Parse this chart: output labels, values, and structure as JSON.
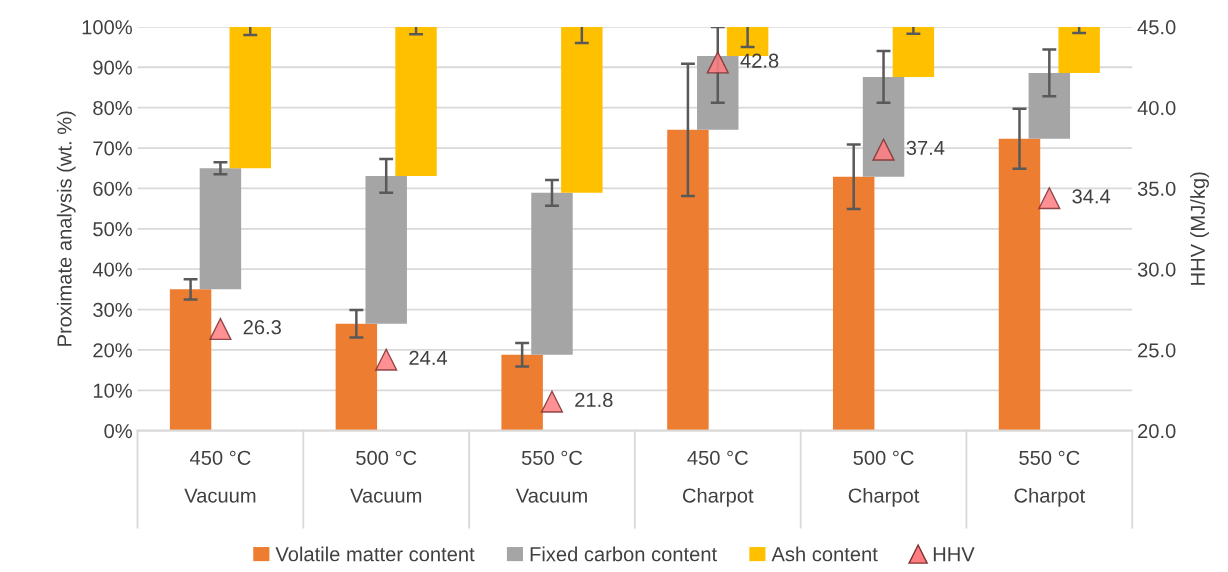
{
  "chart_data": {
    "type": "bar",
    "stacked": true,
    "categories": [
      "450 °C\nVacuum",
      "500 °C\nVacuum",
      "550 °C\nVacuum",
      "450 °C\nCharpot",
      "500 °C\nCharpot",
      "550 °C\nCharpot"
    ],
    "series": [
      {
        "name": "Volatile matter content",
        "color": "#ed7d31",
        "values": [
          35.0,
          26.5,
          18.8,
          74.5,
          62.9,
          72.3
        ],
        "errors": [
          2.5,
          3.4,
          2.9,
          16.4,
          8.0,
          7.4
        ]
      },
      {
        "name": "Fixed carbon content",
        "color": "#a5a5a5",
        "values": [
          30.0,
          36.6,
          40.1,
          18.3,
          24.7,
          16.3
        ],
        "errors": [
          1.5,
          4.2,
          3.2,
          [
            81.2,
            100
          ],
          6.4,
          5.8
        ]
      },
      {
        "name": "Ash content",
        "color": "#ffc000",
        "values": [
          35.0,
          36.9,
          41.1,
          7.2,
          12.4,
          11.4
        ],
        "errors": [
          2.0,
          1.8,
          4.0,
          5.0,
          1.7,
          1.5
        ]
      },
      {
        "name": "HHV",
        "type": "scatter",
        "axis": "y2",
        "color": "#ff7c80",
        "marker": "triangle",
        "data_labels": true,
        "values": [
          26.3,
          24.4,
          21.8,
          42.8,
          37.4,
          34.4
        ]
      }
    ],
    "ylabel": "Proximate analysis (wt. %)",
    "y2label": "HHV (MJ/kg)",
    "ylim": [
      0,
      100
    ],
    "yticks": [
      {
        "value": 0,
        "label": "0%"
      },
      {
        "value": 10,
        "label": "10%"
      },
      {
        "value": 20,
        "label": "20%"
      },
      {
        "value": 30,
        "label": "30%"
      },
      {
        "value": 40,
        "label": "40%"
      },
      {
        "value": 50,
        "label": "50%"
      },
      {
        "value": 60,
        "label": "60%"
      },
      {
        "value": 70,
        "label": "70%"
      },
      {
        "value": 80,
        "label": "80%"
      },
      {
        "value": 90,
        "label": "90%"
      },
      {
        "value": 100,
        "label": "100%"
      }
    ],
    "y2lim": [
      20,
      45
    ],
    "y2ticks": [
      {
        "value": 20,
        "label": "20.0"
      },
      {
        "value": 25,
        "label": "25.0"
      },
      {
        "value": 30,
        "label": "30.0"
      },
      {
        "value": 35,
        "label": "35.0"
      },
      {
        "value": 40,
        "label": "40.0"
      },
      {
        "value": 45,
        "label": "45.0"
      }
    ],
    "grid": "y",
    "legend": "bottom"
  }
}
